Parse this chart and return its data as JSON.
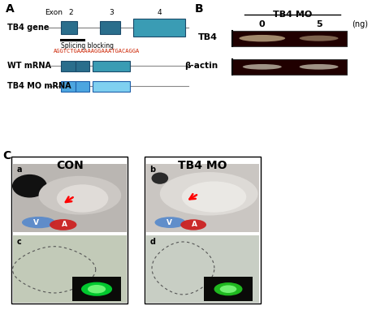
{
  "panel_A_title": "A",
  "panel_B_title": "B",
  "panel_C_title": "C",
  "exon_label": "Exon",
  "exon_numbers": [
    "2",
    "3",
    "4"
  ],
  "tb4_gene_label": "TB4 gene",
  "splicing_text": "Splicing blocking",
  "sequence_text": "AGGTCTGAAAAAGGAAATGACAGGA",
  "wt_mrna_label": "WT mRNA",
  "tb4_mo_mrna_label": "TB4 MO mRNA",
  "panel_B_header": "TB4 MO",
  "col0_label": "0",
  "col5_label": "5",
  "ng_label": "(ng)",
  "tb4_band_label": "TB4",
  "bactin_label": "β-actin",
  "con_label": "CON",
  "tb4_mo_label": "TB4 MO",
  "sub_a": "a",
  "sub_b": "b",
  "sub_c": "c",
  "sub_d": "d",
  "gene_dark_teal": "#2a6e8c",
  "gene_light_teal": "#3a9cb4",
  "mo_mrna_blue": "#4da6e0",
  "wt_mrna_dark": "#2a6e8c",
  "line_color": "#888888",
  "sequence_color": "#cc2200",
  "bg_color": "#ffffff",
  "gel_bg": "#200000",
  "band_color_tb4": "#b09878",
  "band_color_bactin": "#c0b8a8",
  "embryo_bg_a": "#b8b4b0",
  "embryo_bg_b": "#c8c4c0",
  "cell_bg_c": "#c0c8b8",
  "cell_bg_d": "#c8ccc0"
}
